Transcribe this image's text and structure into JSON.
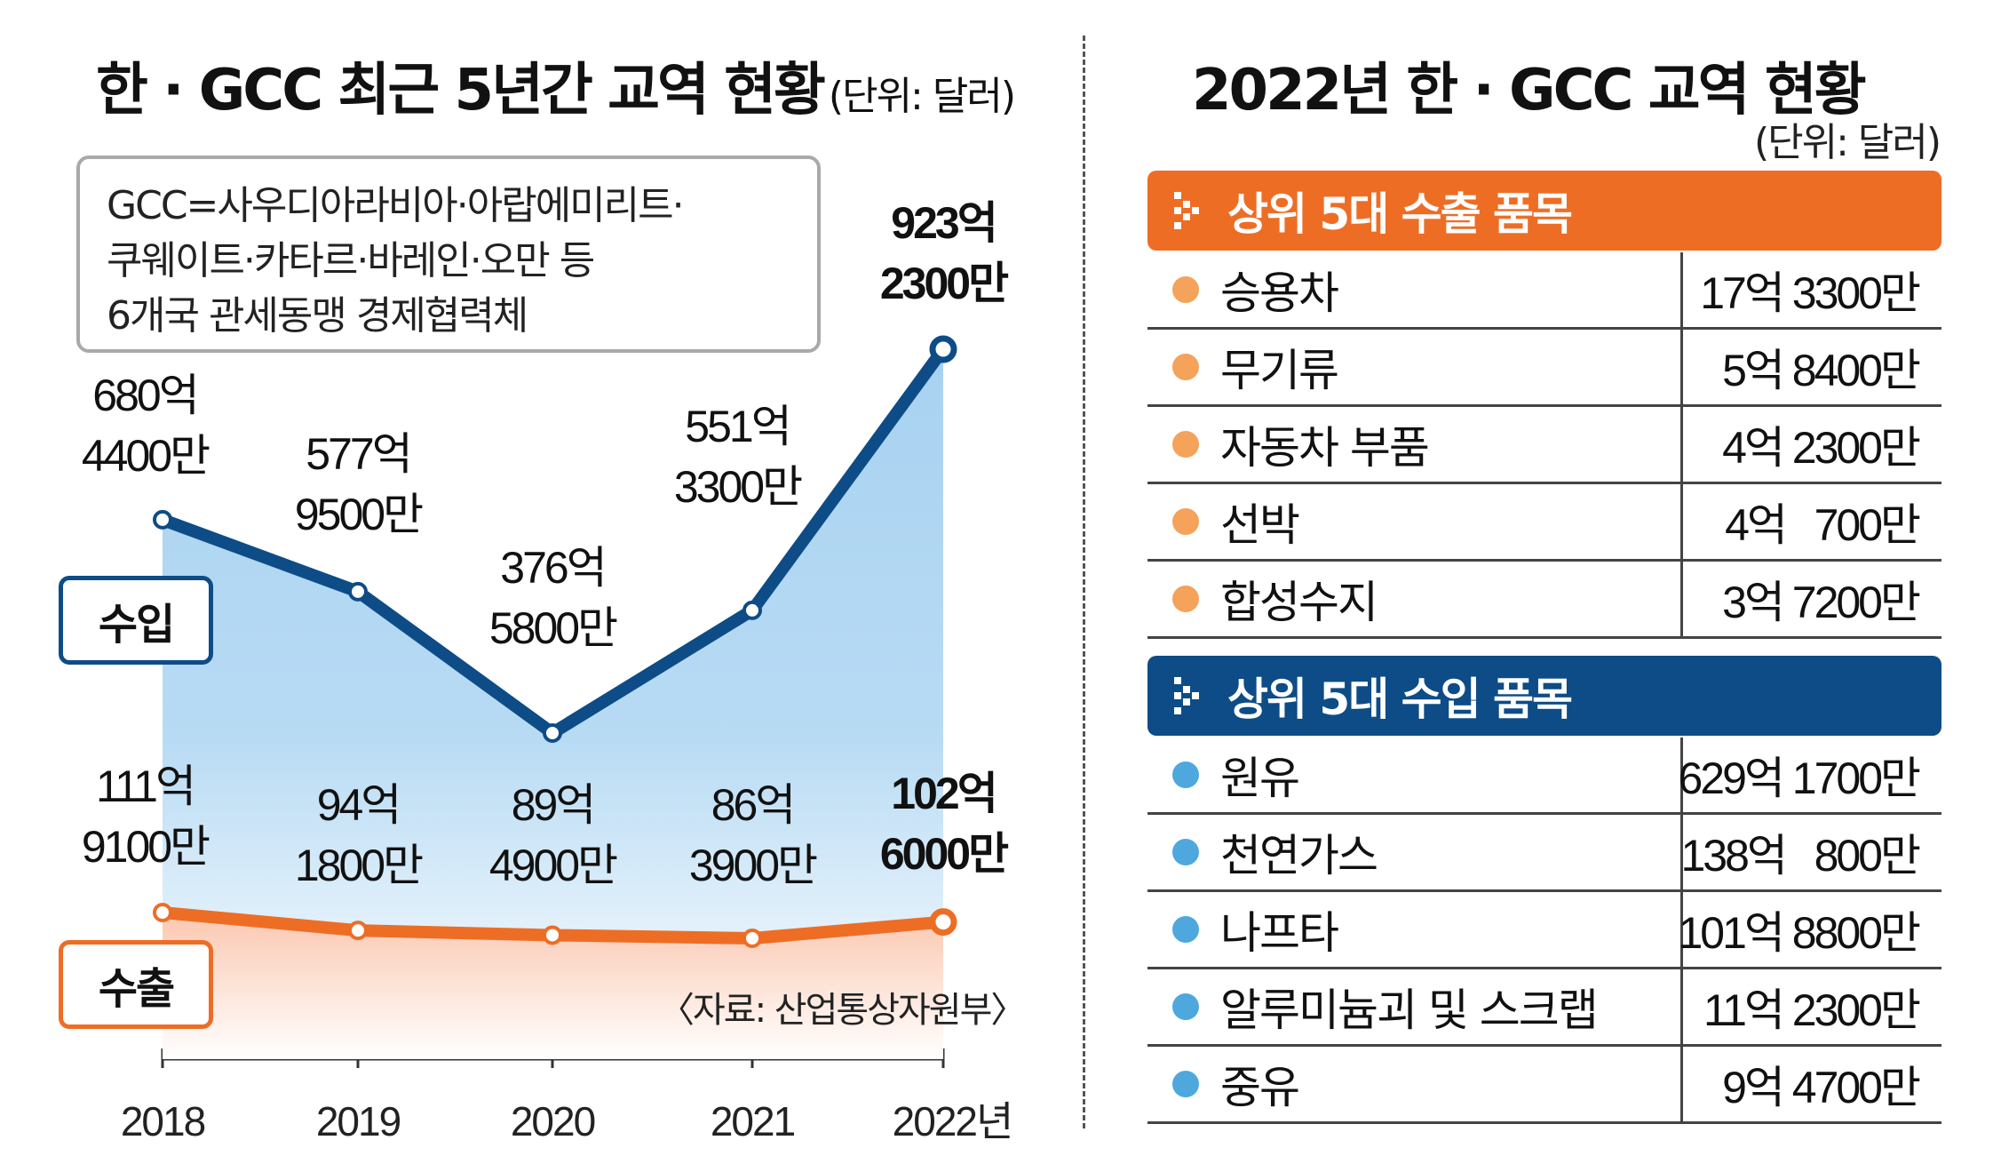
{
  "left": {
    "title": "한 · GCC 최근 5년간 교역 현황",
    "unit": "(단위: 달러)",
    "note_lines": [
      "GCC=사우디아라비아·아랍에미리트·",
      "쿠웨이트·카타르·바레인·오만 등",
      "6개국 관세동맹 경제협력체"
    ],
    "import_label": "수입",
    "export_label": "수출",
    "source": "〈자료: 산업통상자원부〉"
  },
  "chart_data": {
    "type": "area",
    "categories": [
      "2018",
      "2019",
      "2020",
      "2021",
      "2022년"
    ],
    "series": [
      {
        "name": "수입",
        "color": "#0d4c86",
        "fill": "#a8d2f1",
        "values": [
          68044000000,
          57795000000,
          37658000000,
          55133000000,
          92323000000
        ],
        "labels": [
          [
            "680억",
            "4400만"
          ],
          [
            "577억",
            "9500만"
          ],
          [
            "376억",
            "5800만"
          ],
          [
            "551억",
            "3300만"
          ],
          [
            "923억",
            "2300만"
          ]
        ]
      },
      {
        "name": "수출",
        "color": "#ee6d25",
        "fill": "#fbc7b0",
        "values": [
          11191000000,
          9418000000,
          8949000000,
          8639000000,
          10260000000
        ],
        "labels": [
          [
            "111억",
            "9100만"
          ],
          [
            "94억",
            "1800만"
          ],
          [
            "89억",
            "4900만"
          ],
          [
            "86억",
            "3900만"
          ],
          [
            "102억",
            "6000만"
          ]
        ]
      }
    ]
  },
  "right": {
    "title": "2022년 한 · GCC 교역 현황",
    "unit": "(단위: 달러)",
    "export_header": "상위 5대 수출 품목",
    "export_color": "#ee6d25",
    "export_dot_color": "#f5a25a",
    "export_items": [
      {
        "name": "승용차",
        "value": "17억 3300만"
      },
      {
        "name": "무기류",
        "value": "5억 8400만"
      },
      {
        "name": "자동차 부품",
        "value": "4억 2300만"
      },
      {
        "name": "선박",
        "value": "4억   700만"
      },
      {
        "name": "합성수지",
        "value": "3억 7200만"
      }
    ],
    "import_header": "상위 5대 수입 품목",
    "import_color": "#0d4c86",
    "import_dot_color": "#4ea8de",
    "import_items": [
      {
        "name": "원유",
        "value": "629억 1700만"
      },
      {
        "name": "천연가스",
        "value": "138억   800만"
      },
      {
        "name": "나프타",
        "value": "101억 8800만"
      },
      {
        "name": "알루미늄괴 및 스크랩",
        "value": "11억 2300만"
      },
      {
        "name": "중유",
        "value": "9억 4700만"
      }
    ]
  }
}
